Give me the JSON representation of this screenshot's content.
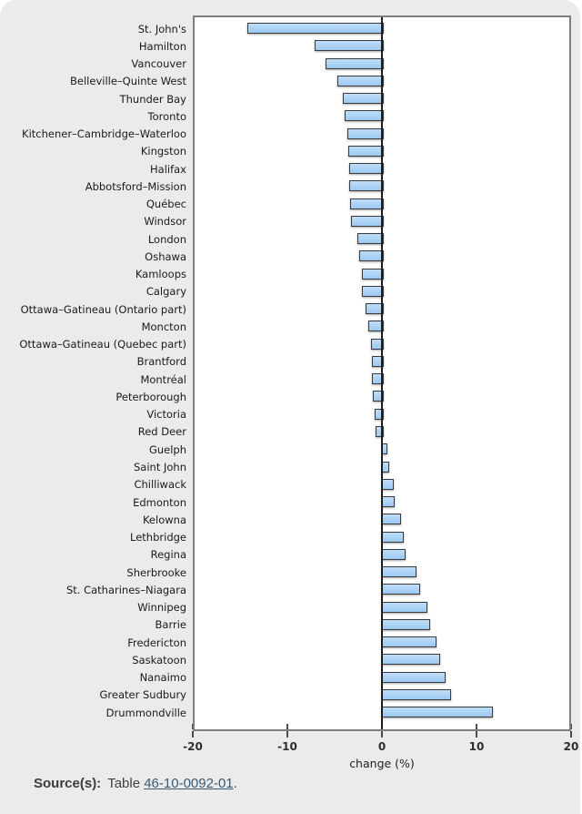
{
  "panel": {
    "background": "#ebebeb"
  },
  "chart_data": {
    "type": "bar",
    "orientation": "horizontal",
    "title": "",
    "xlabel": "change (%)",
    "xlim": [
      -20,
      20
    ],
    "xticks": [
      -20,
      -10,
      0,
      10,
      20
    ],
    "grid": "off",
    "bar_color": "#a3cdf3",
    "bar_border_color": "#3b3b3b",
    "categories": [
      "St. John's",
      "Hamilton",
      "Vancouver",
      "Belleville–Quinte West",
      "Thunder Bay",
      "Toronto",
      "Kitchener–Cambridge–Waterloo",
      "Kingston",
      "Halifax",
      "Abbotsford–Mission",
      "Québec",
      "Windsor",
      "London",
      "Oshawa",
      "Kamloops",
      "Calgary",
      "Ottawa–Gatineau (Ontario part)",
      "Moncton",
      "Ottawa–Gatineau (Quebec part)",
      "Brantford",
      "Montréal",
      "Peterborough",
      "Victoria",
      "Red Deer",
      "Guelph",
      "Saint John",
      "Chilliwack",
      "Edmonton",
      "Kelowna",
      "Lethbridge",
      "Regina",
      "Sherbrooke",
      "St. Catharines–Niagara",
      "Winnipeg",
      "Barrie",
      "Fredericton",
      "Saskatoon",
      "Nanaimo",
      "Greater Sudbury",
      "Drummondville"
    ],
    "values": [
      -14.2,
      -7.1,
      -6.0,
      -4.7,
      -4.1,
      -3.9,
      -3.7,
      -3.6,
      -3.5,
      -3.5,
      -3.4,
      -3.3,
      -2.6,
      -2.4,
      -2.1,
      -2.1,
      -1.7,
      -1.4,
      -1.2,
      -1.1,
      -1.1,
      -1.0,
      -0.8,
      -0.7,
      0.4,
      0.6,
      1.1,
      1.2,
      1.8,
      2.1,
      2.3,
      3.5,
      3.8,
      4.6,
      4.9,
      5.6,
      6.0,
      6.5,
      7.1,
      11.5
    ]
  },
  "source": {
    "label": "Source(s):",
    "text_before_link": "Table ",
    "link_text": "46-10-0092-01",
    "text_after_link": "."
  }
}
